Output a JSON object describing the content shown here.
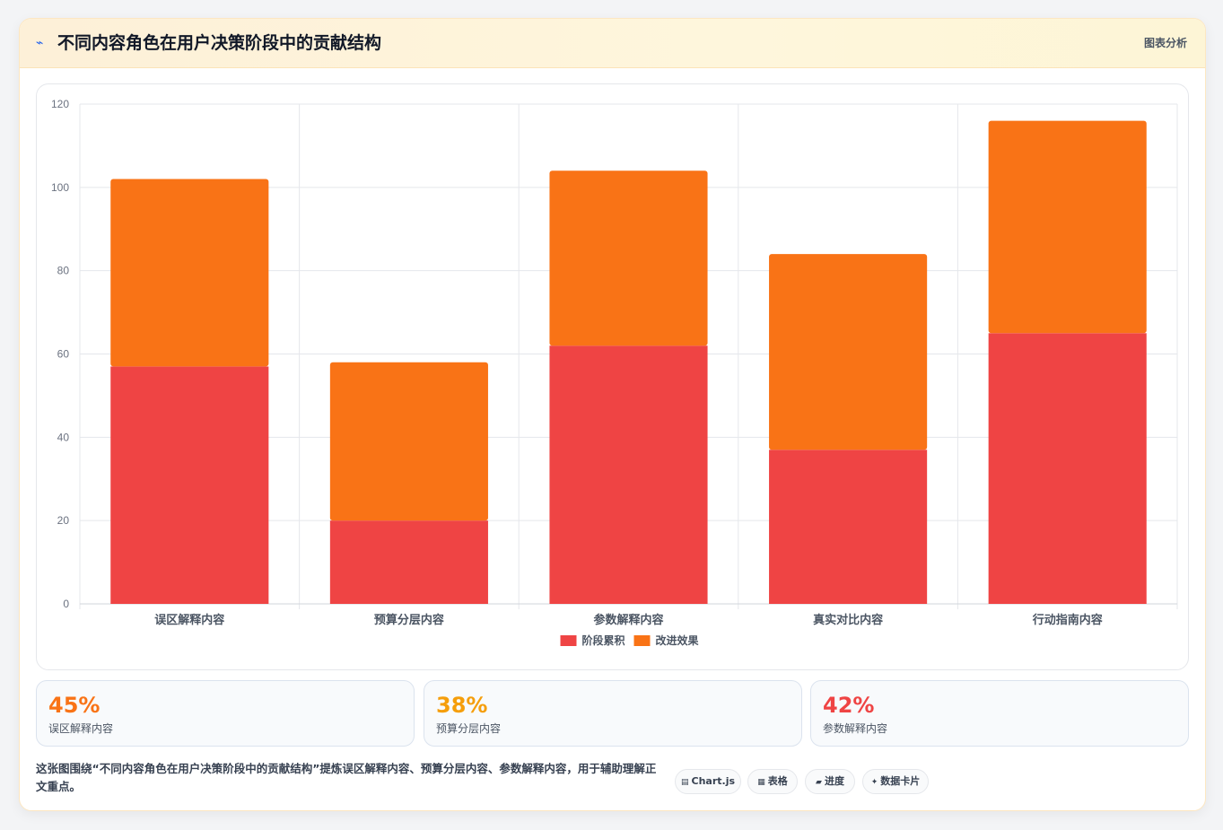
{
  "header": {
    "icon": "chart-icon",
    "title": "不同内容角色在用户决策阶段中的贡献结构",
    "tag": "图表分析"
  },
  "colors": {
    "series1": "#ef4444",
    "series2": "#f97316",
    "kpi1": "#f97316",
    "kpi2": "#f59e0b",
    "kpi3": "#ef4444"
  },
  "chart_data": {
    "type": "bar",
    "stacked": true,
    "categories": [
      "误区解释内容",
      "预算分层内容",
      "参数解释内容",
      "真实对比内容",
      "行动指南内容"
    ],
    "series": [
      {
        "name": "阶段累积",
        "values": [
          57,
          20,
          62,
          37,
          65
        ]
      },
      {
        "name": "改进效果",
        "values": [
          45,
          38,
          42,
          47,
          51
        ]
      }
    ],
    "ylim": [
      0,
      120
    ],
    "yticks": [
      0,
      20,
      40,
      60,
      80,
      100,
      120
    ],
    "grid": true,
    "legend": "bottom"
  },
  "kpis": [
    {
      "value": "45%",
      "label": "误区解释内容"
    },
    {
      "value": "38%",
      "label": "预算分层内容"
    },
    {
      "value": "42%",
      "label": "参数解释内容"
    }
  ],
  "summary": "这张图围绕“不同内容角色在用户决策阶段中的贡献结构”提炼误区解释内容、预算分层内容、参数解释内容，用于辅助理解正文重点。",
  "chips": [
    {
      "icon": "table-icon",
      "glyph": "▤",
      "label": "Chart.js"
    },
    {
      "icon": "grid-icon",
      "glyph": "▦",
      "label": "表格"
    },
    {
      "icon": "progress-icon",
      "glyph": "▰",
      "label": "进度"
    },
    {
      "icon": "sparkle-icon",
      "glyph": "✦",
      "label": "数据卡片"
    }
  ]
}
